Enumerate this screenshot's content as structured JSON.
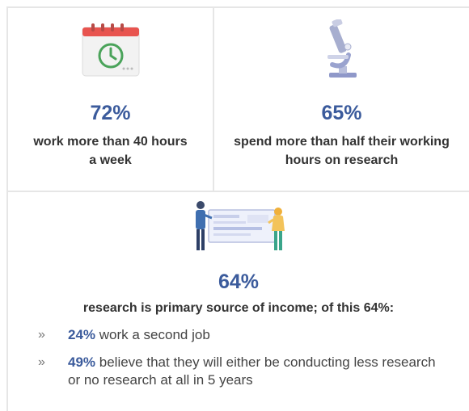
{
  "stats": [
    {
      "percent": "72%",
      "text": "work more than 40 hours a week",
      "icon": "calendar-clock-icon"
    },
    {
      "percent": "65%",
      "text": "spend more than half their working hours on research",
      "icon": "microscope-icon"
    },
    {
      "percent": "64%",
      "text": "research is primary source of income; of this 64%:",
      "icon": "researchers-board-icon"
    }
  ],
  "details": [
    {
      "percent": "24%",
      "text": "work a second job"
    },
    {
      "percent": "49%",
      "text": "believe that they will either be conducting less research or no research at all in 5 years"
    }
  ],
  "bullet_glyph": "»",
  "colors": {
    "accent": "#3b5b9c",
    "text": "#333333",
    "divider": "#e6e6e6",
    "calendar_red": "#e8544f",
    "clock_green": "#4aa35a"
  }
}
